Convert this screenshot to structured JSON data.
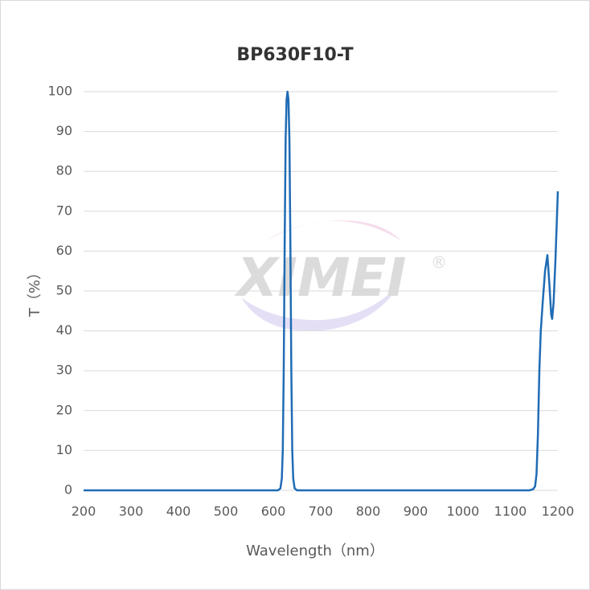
{
  "chart_data": {
    "type": "line",
    "title": "BP630F10-T",
    "x_label": "Wavelength（nm）",
    "y_label": "T（%）",
    "watermark": "XIMEI",
    "watermark_mark": "®",
    "x": [
      200,
      610,
      615,
      618,
      620,
      622,
      624,
      626,
      628,
      630,
      632,
      634,
      636,
      638,
      640,
      642,
      645,
      650,
      1140,
      1148,
      1152,
      1155,
      1158,
      1161,
      1164,
      1168,
      1173,
      1178,
      1182,
      1186,
      1188,
      1191,
      1195,
      1200
    ],
    "values": [
      0,
      0,
      0.5,
      3,
      10,
      30,
      62,
      88,
      98,
      100,
      98,
      88,
      62,
      30,
      10,
      3,
      0.5,
      0,
      0,
      0.3,
      1,
      4,
      14,
      30,
      40,
      47,
      55,
      59,
      52,
      44,
      43,
      47,
      58,
      75
    ],
    "color": "#1f6cb5",
    "xlim": [
      200,
      1200
    ],
    "xticks": [
      200,
      300,
      400,
      500,
      600,
      700,
      800,
      900,
      1000,
      1100,
      1200
    ],
    "ylim": [
      0,
      100
    ],
    "yticks": [
      0,
      10,
      20,
      30,
      40,
      50,
      60,
      70,
      80,
      90,
      100
    ],
    "grid": true
  }
}
